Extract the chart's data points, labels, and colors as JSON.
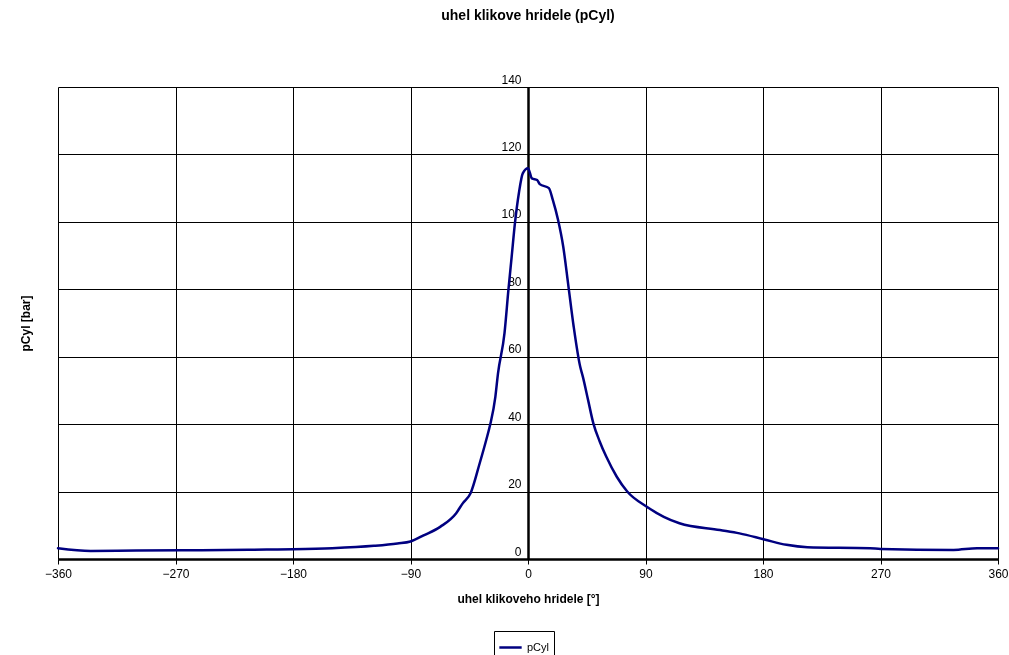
{
  "chart_data": {
    "type": "line",
    "title": "uhel klikove hridele (pCyl)",
    "xlabel": "uhel klikoveho hridele [°]",
    "ylabel": "pCyl [bar]",
    "x": [
      -360,
      -335,
      -300,
      -250,
      -200,
      -180,
      -150,
      -118,
      -100,
      -90,
      -80,
      -67,
      -55,
      -50,
      -44,
      -37,
      -32,
      -29,
      -25,
      -23,
      -18,
      -15,
      -12.5,
      -10,
      -7,
      -4,
      0,
      3,
      7,
      9,
      16,
      19,
      23,
      27,
      31,
      35,
      40,
      42,
      46,
      50,
      55,
      60,
      68,
      76,
      91,
      104,
      116,
      147,
      162,
      181,
      198,
      214,
      262,
      270,
      326,
      344,
      360
    ],
    "series": [
      {
        "name": "pCyl",
        "color": "#000080",
        "values": [
          3.2,
          2.4,
          2.5,
          2.6,
          2.8,
          2.9,
          3.2,
          3.9,
          4.6,
          5.2,
          7.0,
          9.6,
          13.6,
          16.5,
          19.5,
          28.4,
          35.3,
          39.8,
          48.1,
          55,
          67,
          79.8,
          89.7,
          99.6,
          108.5,
          114.4,
          115.9,
          112.9,
          112.4,
          111.2,
          110,
          106.5,
          100.6,
          92.6,
          80.8,
          68.9,
          57,
          54.1,
          47.2,
          40.3,
          34.8,
          30.3,
          24.4,
          20,
          15.5,
          12.5,
          10.6,
          8.6,
          7.6,
          5.8,
          4.2,
          3.5,
          3.2,
          3.0,
          2.7,
          3.2,
          3.2
        ]
      }
    ],
    "xlim": [
      -360,
      360
    ],
    "xticks": [
      -360,
      -270,
      -180,
      -90,
      0,
      90,
      180,
      270,
      360
    ],
    "ylim": [
      0,
      140
    ],
    "yticks": [
      0,
      20,
      40,
      60,
      80,
      100,
      120,
      140
    ],
    "grid": true,
    "legend": "bottom"
  }
}
